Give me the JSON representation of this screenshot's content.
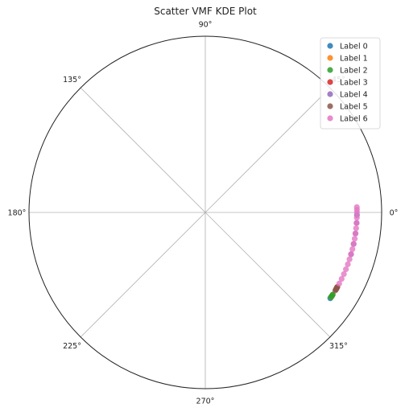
{
  "chart_data": {
    "type": "scatter",
    "projection": "polar",
    "title": "Scatter VMF KDE Plot",
    "angle_ticks": [
      "0°",
      "45°",
      "90°",
      "135°",
      "180°",
      "225°",
      "270°",
      "315°"
    ],
    "radius_range": [
      0,
      1
    ],
    "grid": true,
    "legend_position": "top-right",
    "series": [
      {
        "name": "Label 0",
        "color": "#1f77b4",
        "points": [
          [
            -34.5,
            0.86
          ],
          [
            -34.0,
            0.86
          ],
          [
            -33.5,
            0.86
          ]
        ]
      },
      {
        "name": "Label 1",
        "color": "#ff7f0e",
        "points": [
          [
            -33.8,
            0.86
          ],
          [
            -33.0,
            0.86
          ]
        ]
      },
      {
        "name": "Label 2",
        "color": "#2ca02c",
        "points": [
          [
            -34.0,
            0.86
          ],
          [
            -33.3,
            0.86
          ],
          [
            -32.8,
            0.86
          ]
        ]
      },
      {
        "name": "Label 3",
        "color": "#d62728",
        "points": [
          [
            -30.5,
            0.86
          ],
          [
            -30.0,
            0.86
          ],
          [
            -29.5,
            0.86
          ]
        ]
      },
      {
        "name": "Label 4",
        "color": "#9467bd",
        "points": [
          [
            -16.0,
            0.86
          ],
          [
            -12.0,
            0.86
          ],
          [
            -8.0,
            0.86
          ],
          [
            -4.0,
            0.86
          ],
          [
            -1.0,
            0.86
          ]
        ]
      },
      {
        "name": "Label 5",
        "color": "#8c564b",
        "points": [
          [
            -31.0,
            0.86
          ],
          [
            -30.5,
            0.86
          ],
          [
            -30.0,
            0.86
          ],
          [
            -29.5,
            0.86
          ]
        ]
      },
      {
        "name": "Label 6",
        "color": "#e377c2",
        "points": [
          [
            -28.0,
            0.86
          ],
          [
            -26.0,
            0.86
          ],
          [
            -24.0,
            0.86
          ],
          [
            -22.0,
            0.86
          ],
          [
            -20.0,
            0.86
          ],
          [
            -18.0,
            0.86
          ],
          [
            -16.0,
            0.86
          ],
          [
            -14.0,
            0.86
          ],
          [
            -12.0,
            0.86
          ],
          [
            -10.0,
            0.86
          ],
          [
            -8.0,
            0.86
          ],
          [
            -6.0,
            0.86
          ],
          [
            -4.0,
            0.86
          ],
          [
            -2.0,
            0.86
          ],
          [
            0.0,
            0.86
          ],
          [
            1.0,
            0.86
          ],
          [
            2.0,
            0.86
          ]
        ]
      }
    ]
  }
}
